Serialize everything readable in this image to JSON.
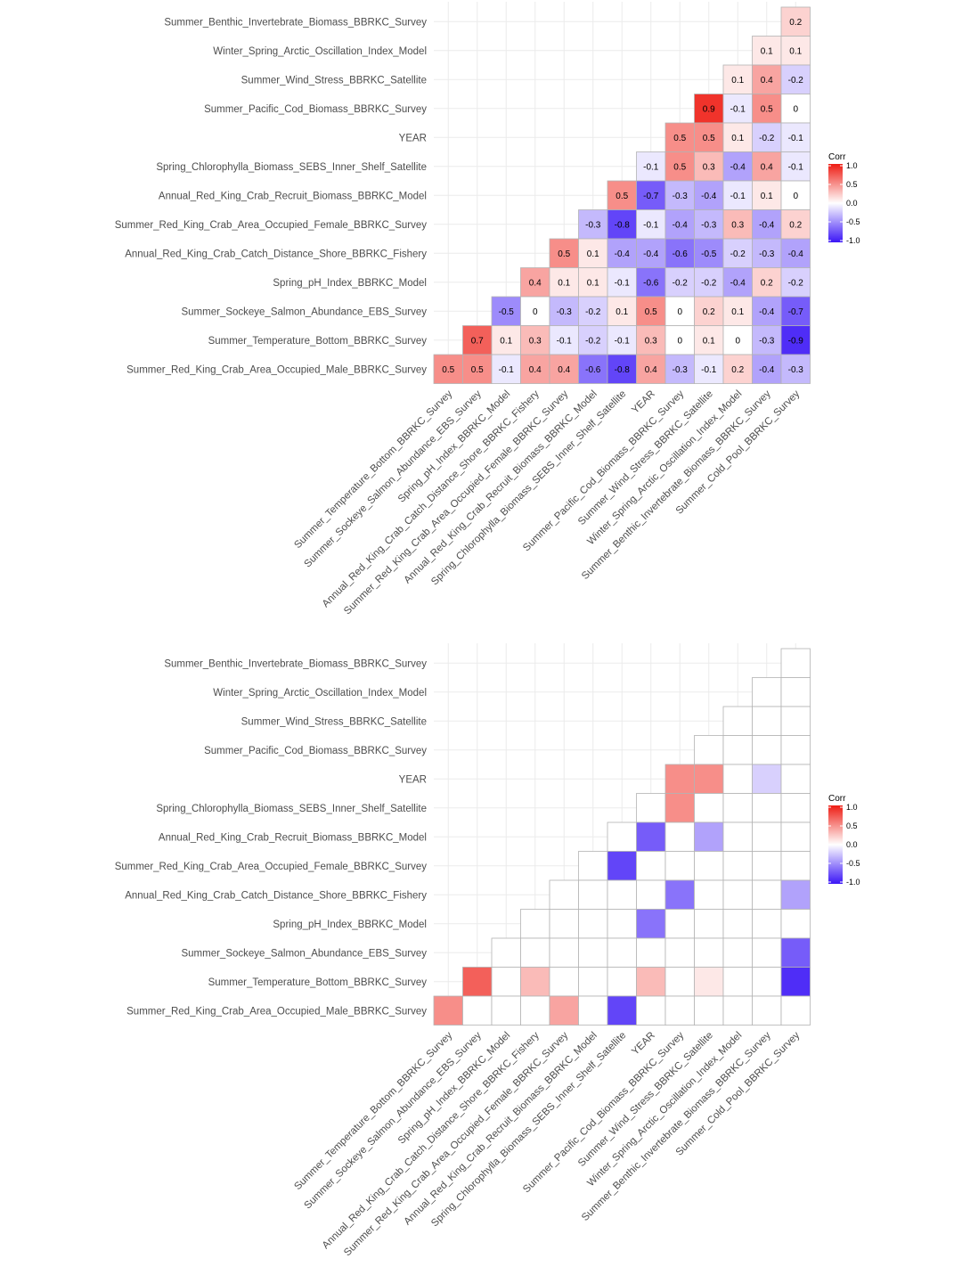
{
  "chart_data": [
    {
      "type": "heatmap",
      "panel": "top",
      "title": "",
      "show_values": true,
      "rows": [
        "Summer_Benthic_Invertebrate_Biomass_BBRKC_Survey",
        "Winter_Spring_Arctic_Oscillation_Index_Model",
        "Summer_Wind_Stress_BBRKC_Satellite",
        "Summer_Pacific_Cod_Biomass_BBRKC_Survey",
        "YEAR",
        "Spring_Chlorophylla_Biomass_SEBS_Inner_Shelf_Satellite",
        "Annual_Red_King_Crab_Recruit_Biomass_BBRKC_Model",
        "Summer_Red_King_Crab_Area_Occupied_Female_BBRKC_Survey",
        "Annual_Red_King_Crab_Catch_Distance_Shore_BBRKC_Fishery",
        "Spring_pH_Index_BBRKC_Model",
        "Summer_Sockeye_Salmon_Abundance_EBS_Survey",
        "Summer_Temperature_Bottom_BBRKC_Survey",
        "Summer_Red_King_Crab_Area_Occupied_Male_BBRKC_Survey"
      ],
      "columns": [
        "Summer_Temperature_Bottom_BBRKC_Survey",
        "Summer_Sockeye_Salmon_Abundance_EBS_Survey",
        "Spring_pH_Index_BBRKC_Model",
        "Annual_Red_King_Crab_Catch_Distance_Shore_BBRKC_Fishery",
        "Summer_Red_King_Crab_Area_Occupied_Female_BBRKC_Survey",
        "Annual_Red_King_Crab_Recruit_Biomass_BBRKC_Model",
        "Spring_Chlorophylla_Biomass_SEBS_Inner_Shelf_Satellite",
        "YEAR",
        "Summer_Pacific_Cod_Biomass_BBRKC_Survey",
        "Summer_Wind_Stress_BBRKC_Satellite",
        "Winter_Spring_Arctic_Oscillation_Index_Model",
        "Summer_Benthic_Invertebrate_Biomass_BBRKC_Survey",
        "Summer_Cold_Pool_BBRKC_Survey"
      ],
      "values": [
        [
          null,
          null,
          null,
          null,
          null,
          null,
          null,
          null,
          null,
          null,
          null,
          null,
          0.2
        ],
        [
          null,
          null,
          null,
          null,
          null,
          null,
          null,
          null,
          null,
          null,
          null,
          0.1,
          0.1
        ],
        [
          null,
          null,
          null,
          null,
          null,
          null,
          null,
          null,
          null,
          null,
          0.1,
          0.4,
          -0.2
        ],
        [
          null,
          null,
          null,
          null,
          null,
          null,
          null,
          null,
          null,
          0.9,
          -0.1,
          0.5,
          0
        ],
        [
          null,
          null,
          null,
          null,
          null,
          null,
          null,
          null,
          0.5,
          0.5,
          0.1,
          -0.2,
          -0.1
        ],
        [
          null,
          null,
          null,
          null,
          null,
          null,
          null,
          -0.1,
          0.5,
          0.3,
          -0.4,
          0.4,
          -0.1
        ],
        [
          null,
          null,
          null,
          null,
          null,
          null,
          0.5,
          -0.7,
          -0.3,
          -0.4,
          -0.1,
          0.1,
          0
        ],
        [
          null,
          null,
          null,
          null,
          null,
          -0.3,
          -0.8,
          -0.1,
          -0.4,
          -0.3,
          0.3,
          -0.4,
          0.2
        ],
        [
          null,
          null,
          null,
          null,
          0.5,
          0.1,
          -0.4,
          -0.4,
          -0.6,
          -0.5,
          -0.2,
          -0.3,
          -0.4
        ],
        [
          null,
          null,
          null,
          0.4,
          0.1,
          0.1,
          -0.1,
          -0.6,
          -0.2,
          -0.2,
          -0.4,
          0.2,
          -0.2
        ],
        [
          null,
          null,
          -0.5,
          0,
          -0.3,
          -0.2,
          0.1,
          0.5,
          0,
          0.2,
          0.1,
          -0.4,
          -0.7
        ],
        [
          null,
          0.7,
          0.1,
          0.3,
          -0.1,
          -0.2,
          -0.1,
          0.3,
          0,
          0.1,
          0,
          -0.3,
          -0.9
        ],
        [
          0.5,
          0.5,
          -0.1,
          0.4,
          0.4,
          -0.6,
          -0.8,
          0.4,
          -0.3,
          -0.1,
          0.2,
          -0.4,
          -0.3
        ]
      ],
      "legend": {
        "title": "Corr",
        "ticks": [
          "1.0",
          "0.5",
          "0.0",
          "-0.5",
          "-1.0"
        ],
        "range": [
          -1,
          1
        ],
        "position": "right"
      },
      "colors": {
        "low": "#3b16f6",
        "mid": "#ffffff",
        "high": "#ee1c13",
        "grid": "#ebebeb",
        "border": "#b3b3b3"
      }
    },
    {
      "type": "heatmap",
      "panel": "bottom",
      "title": "",
      "show_values": false,
      "note": "only significant correlations filled; others drawn as empty cells",
      "rows": [
        "Summer_Benthic_Invertebrate_Biomass_BBRKC_Survey",
        "Winter_Spring_Arctic_Oscillation_Index_Model",
        "Summer_Wind_Stress_BBRKC_Satellite",
        "Summer_Pacific_Cod_Biomass_BBRKC_Survey",
        "YEAR",
        "Spring_Chlorophylla_Biomass_SEBS_Inner_Shelf_Satellite",
        "Annual_Red_King_Crab_Recruit_Biomass_BBRKC_Model",
        "Summer_Red_King_Crab_Area_Occupied_Female_BBRKC_Survey",
        "Annual_Red_King_Crab_Catch_Distance_Shore_BBRKC_Fishery",
        "Spring_pH_Index_BBRKC_Model",
        "Summer_Sockeye_Salmon_Abundance_EBS_Survey",
        "Summer_Temperature_Bottom_BBRKC_Survey",
        "Summer_Red_King_Crab_Area_Occupied_Male_BBRKC_Survey"
      ],
      "columns": [
        "Summer_Temperature_Bottom_BBRKC_Survey",
        "Summer_Sockeye_Salmon_Abundance_EBS_Survey",
        "Spring_pH_Index_BBRKC_Model",
        "Annual_Red_King_Crab_Catch_Distance_Shore_BBRKC_Fishery",
        "Summer_Red_King_Crab_Area_Occupied_Female_BBRKC_Survey",
        "Annual_Red_King_Crab_Recruit_Biomass_BBRKC_Model",
        "Spring_Chlorophylla_Biomass_SEBS_Inner_Shelf_Satellite",
        "YEAR",
        "Summer_Pacific_Cod_Biomass_BBRKC_Survey",
        "Summer_Wind_Stress_BBRKC_Satellite",
        "Winter_Spring_Arctic_Oscillation_Index_Model",
        "Summer_Benthic_Invertebrate_Biomass_BBRKC_Survey",
        "Summer_Cold_Pool_BBRKC_Survey"
      ],
      "values": [
        [
          null,
          null,
          null,
          null,
          null,
          null,
          null,
          null,
          null,
          null,
          null,
          null,
          "NA"
        ],
        [
          null,
          null,
          null,
          null,
          null,
          null,
          null,
          null,
          null,
          null,
          null,
          "NA",
          "NA"
        ],
        [
          null,
          null,
          null,
          null,
          null,
          null,
          null,
          null,
          null,
          null,
          "NA",
          "NA",
          "NA"
        ],
        [
          null,
          null,
          null,
          null,
          null,
          null,
          null,
          null,
          null,
          "NA",
          "NA",
          "NA",
          "NA"
        ],
        [
          null,
          null,
          null,
          null,
          null,
          null,
          null,
          null,
          0.5,
          0.5,
          "NA",
          -0.2,
          "NA"
        ],
        [
          null,
          null,
          null,
          null,
          null,
          null,
          null,
          "NA",
          0.5,
          "NA",
          "NA",
          "NA",
          "NA"
        ],
        [
          null,
          null,
          null,
          null,
          null,
          null,
          "NA",
          -0.7,
          "NA",
          -0.4,
          "NA",
          "NA",
          "NA"
        ],
        [
          null,
          null,
          null,
          null,
          null,
          "NA",
          -0.8,
          "NA",
          "NA",
          "NA",
          "NA",
          "NA",
          "NA"
        ],
        [
          null,
          null,
          null,
          null,
          "NA",
          "NA",
          "NA",
          "NA",
          -0.6,
          "NA",
          "NA",
          "NA",
          -0.4
        ],
        [
          null,
          null,
          null,
          "NA",
          "NA",
          "NA",
          "NA",
          -0.6,
          "NA",
          "NA",
          "NA",
          "NA",
          "NA"
        ],
        [
          null,
          null,
          "NA",
          "NA",
          "NA",
          "NA",
          "NA",
          "NA",
          "NA",
          "NA",
          "NA",
          "NA",
          -0.7
        ],
        [
          null,
          0.7,
          "NA",
          0.3,
          "NA",
          "NA",
          "NA",
          0.3,
          "NA",
          0.1,
          "NA",
          "NA",
          -0.9
        ],
        [
          0.5,
          "NA",
          "NA",
          "NA",
          0.4,
          "NA",
          -0.8,
          "NA",
          "NA",
          "NA",
          "NA",
          "NA",
          "NA"
        ]
      ],
      "legend": {
        "title": "Corr",
        "ticks": [
          "1.0",
          "0.5",
          "0.0",
          "-0.5",
          "-1.0"
        ],
        "range": [
          -1,
          1
        ],
        "position": "right"
      },
      "colors": {
        "low": "#3b16f6",
        "mid": "#ffffff",
        "high": "#ee1c13",
        "grid": "#ebebeb",
        "border": "#b3b3b3"
      }
    }
  ]
}
